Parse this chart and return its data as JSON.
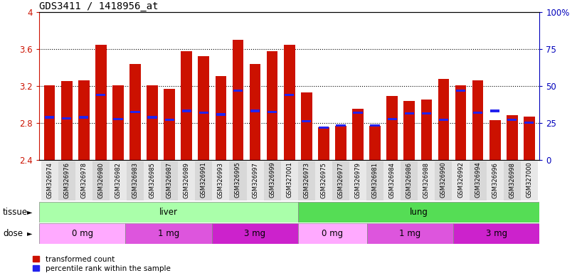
{
  "title": "GDS3411 / 1418956_at",
  "samples": [
    "GSM326974",
    "GSM326976",
    "GSM326978",
    "GSM326980",
    "GSM326982",
    "GSM326983",
    "GSM326985",
    "GSM326987",
    "GSM326989",
    "GSM326991",
    "GSM326993",
    "GSM326995",
    "GSM326997",
    "GSM326999",
    "GSM327001",
    "GSM326973",
    "GSM326975",
    "GSM326977",
    "GSM326979",
    "GSM326981",
    "GSM326984",
    "GSM326986",
    "GSM326988",
    "GSM326990",
    "GSM326992",
    "GSM326994",
    "GSM326996",
    "GSM326998",
    "GSM327000"
  ],
  "bar_values": [
    3.21,
    3.25,
    3.26,
    3.65,
    3.21,
    3.44,
    3.21,
    3.17,
    3.58,
    3.52,
    3.31,
    3.7,
    3.44,
    3.58,
    3.65,
    3.13,
    2.75,
    2.77,
    2.95,
    2.77,
    3.09,
    3.04,
    3.05,
    3.28,
    3.21,
    3.26,
    2.83,
    2.88,
    2.87
  ],
  "blue_marker_values": [
    2.86,
    2.85,
    2.86,
    3.1,
    2.84,
    2.92,
    2.86,
    2.83,
    2.93,
    2.91,
    2.89,
    3.15,
    2.93,
    2.92,
    3.1,
    2.82,
    2.75,
    2.77,
    2.91,
    2.77,
    2.84,
    2.9,
    2.9,
    2.83,
    3.15,
    2.91,
    2.93,
    2.83,
    2.8
  ],
  "ymin": 2.4,
  "ymax": 4.0,
  "yticks": [
    2.4,
    2.8,
    3.2,
    3.6,
    4.0
  ],
  "ytick_labels": [
    "2.4",
    "2.8",
    "3.2",
    "3.6",
    "4"
  ],
  "right_yticks": [
    0,
    25,
    50,
    75,
    100
  ],
  "right_ytick_labels": [
    "0",
    "25",
    "50",
    "75",
    "100%"
  ],
  "bar_color": "#CC1100",
  "blue_color": "#2222EE",
  "tissue_groups": [
    {
      "label": "liver",
      "start": 0,
      "end": 15,
      "color": "#AAFFAA"
    },
    {
      "label": "lung",
      "start": 15,
      "end": 29,
      "color": "#55DD55"
    }
  ],
  "dose_groups": [
    {
      "label": "0 mg",
      "start": 0,
      "end": 5,
      "color": "#FFAAFF"
    },
    {
      "label": "1 mg",
      "start": 5,
      "end": 10,
      "color": "#DD55DD"
    },
    {
      "label": "3 mg",
      "start": 10,
      "end": 15,
      "color": "#CC22CC"
    },
    {
      "label": "0 mg",
      "start": 15,
      "end": 19,
      "color": "#FFAAFF"
    },
    {
      "label": "1 mg",
      "start": 19,
      "end": 24,
      "color": "#DD55DD"
    },
    {
      "label": "3 mg",
      "start": 24,
      "end": 29,
      "color": "#CC22CC"
    }
  ],
  "tissue_label": "tissue",
  "dose_label": "dose",
  "legend_items": [
    {
      "label": "transformed count",
      "color": "#CC1100"
    },
    {
      "label": "percentile rank within the sample",
      "color": "#2222EE"
    }
  ],
  "axis_color_left": "#CC1100",
  "axis_color_right": "#0000BB",
  "title_fontsize": 10,
  "grid_yticks": [
    2.8,
    3.2,
    3.6
  ]
}
